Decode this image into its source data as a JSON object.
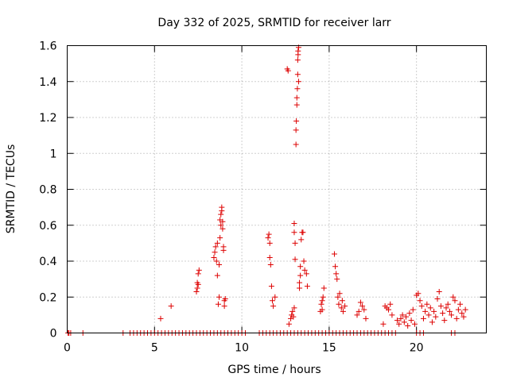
{
  "chart_data": {
    "type": "scatter",
    "title": "Day 332 of 2025, SRMTID for receiver larr",
    "xlabel": "GPS time / hours",
    "ylabel": "SRMTID / TECUs",
    "xlim": [
      0,
      24
    ],
    "ylim": [
      0,
      1.6
    ],
    "xticks": [
      0,
      5,
      10,
      15,
      20
    ],
    "xtick_labels": [
      "0",
      "5",
      "10",
      "15",
      "20"
    ],
    "yticks": [
      0,
      0.2,
      0.4,
      0.6,
      0.8,
      1,
      1.2,
      1.4,
      1.6
    ],
    "ytick_labels": [
      "0",
      "0.2",
      "0.4",
      "0.6",
      "0.8",
      "1",
      "1.2",
      "1.4",
      "1.6"
    ],
    "grid": true,
    "marker": "+",
    "color": "#dd0000",
    "series": [
      {
        "name": "SRMTID",
        "points": [
          [
            0.05,
            0
          ],
          [
            0.1,
            0
          ],
          [
            0.2,
            0
          ],
          [
            0.9,
            0
          ],
          [
            3.2,
            0
          ],
          [
            3.6,
            0
          ],
          [
            3.8,
            0
          ],
          [
            4.0,
            0
          ],
          [
            4.2,
            0
          ],
          [
            4.4,
            0
          ],
          [
            4.6,
            0
          ],
          [
            4.8,
            0
          ],
          [
            5.0,
            0
          ],
          [
            5.2,
            0
          ],
          [
            5.4,
            0
          ],
          [
            5.6,
            0
          ],
          [
            5.8,
            0
          ],
          [
            6.0,
            0
          ],
          [
            6.2,
            0
          ],
          [
            6.4,
            0
          ],
          [
            6.6,
            0
          ],
          [
            6.8,
            0
          ],
          [
            7.0,
            0
          ],
          [
            7.2,
            0
          ],
          [
            7.4,
            0
          ],
          [
            7.6,
            0
          ],
          [
            7.8,
            0
          ],
          [
            8.0,
            0
          ],
          [
            8.2,
            0
          ],
          [
            8.4,
            0
          ],
          [
            8.6,
            0
          ],
          [
            8.8,
            0
          ],
          [
            9.0,
            0
          ],
          [
            9.2,
            0
          ],
          [
            9.4,
            0
          ],
          [
            9.6,
            0
          ],
          [
            9.8,
            0
          ],
          [
            10.0,
            0
          ],
          [
            10.2,
            0
          ],
          [
            11.0,
            0
          ],
          [
            11.2,
            0
          ],
          [
            11.4,
            0
          ],
          [
            11.6,
            0
          ],
          [
            11.8,
            0
          ],
          [
            12.0,
            0
          ],
          [
            12.2,
            0
          ],
          [
            12.4,
            0
          ],
          [
            12.6,
            0
          ],
          [
            12.8,
            0
          ],
          [
            13.0,
            0
          ],
          [
            13.2,
            0
          ],
          [
            13.4,
            0
          ],
          [
            13.6,
            0
          ],
          [
            13.8,
            0
          ],
          [
            14.0,
            0
          ],
          [
            14.2,
            0
          ],
          [
            14.4,
            0
          ],
          [
            14.6,
            0
          ],
          [
            14.8,
            0
          ],
          [
            15.0,
            0
          ],
          [
            15.2,
            0
          ],
          [
            15.4,
            0
          ],
          [
            15.6,
            0
          ],
          [
            15.8,
            0
          ],
          [
            16.0,
            0
          ],
          [
            16.2,
            0
          ],
          [
            16.4,
            0
          ],
          [
            16.6,
            0
          ],
          [
            16.8,
            0
          ],
          [
            17.0,
            0
          ],
          [
            17.2,
            0
          ],
          [
            17.4,
            0
          ],
          [
            17.6,
            0
          ],
          [
            17.8,
            0
          ],
          [
            18.0,
            0
          ],
          [
            18.2,
            0
          ],
          [
            18.4,
            0
          ],
          [
            18.6,
            0
          ],
          [
            18.8,
            0
          ],
          [
            20.0,
            0
          ],
          [
            20.2,
            0
          ],
          [
            20.4,
            0
          ],
          [
            22.0,
            0
          ],
          [
            22.2,
            0
          ],
          [
            5.35,
            0.08
          ],
          [
            5.95,
            0.15
          ],
          [
            7.4,
            0.23
          ],
          [
            7.45,
            0.25
          ],
          [
            7.5,
            0.27
          ],
          [
            7.5,
            0.33
          ],
          [
            7.55,
            0.35
          ],
          [
            7.45,
            0.28
          ],
          [
            8.4,
            0.42
          ],
          [
            8.45,
            0.45
          ],
          [
            8.5,
            0.48
          ],
          [
            8.55,
            0.4
          ],
          [
            8.6,
            0.5
          ],
          [
            8.6,
            0.32
          ],
          [
            8.65,
            0.16
          ],
          [
            8.7,
            0.2
          ],
          [
            8.7,
            0.38
          ],
          [
            8.75,
            0.53
          ],
          [
            8.75,
            0.63
          ],
          [
            8.8,
            0.66
          ],
          [
            8.8,
            0.6
          ],
          [
            8.85,
            0.68
          ],
          [
            8.85,
            0.7
          ],
          [
            8.9,
            0.58
          ],
          [
            8.9,
            0.62
          ],
          [
            8.95,
            0.48
          ],
          [
            8.95,
            0.46
          ],
          [
            9.0,
            0.18
          ],
          [
            9.0,
            0.15
          ],
          [
            9.05,
            0.19
          ],
          [
            11.5,
            0.53
          ],
          [
            11.55,
            0.55
          ],
          [
            11.6,
            0.5
          ],
          [
            11.6,
            0.42
          ],
          [
            11.65,
            0.38
          ],
          [
            11.7,
            0.26
          ],
          [
            11.75,
            0.18
          ],
          [
            11.8,
            0.15
          ],
          [
            11.9,
            0.2
          ],
          [
            12.6,
            1.47
          ],
          [
            12.65,
            1.46
          ],
          [
            12.7,
            0.05
          ],
          [
            12.8,
            0.08
          ],
          [
            12.85,
            0.1
          ],
          [
            12.9,
            0.12
          ],
          [
            12.95,
            0.09
          ],
          [
            13.0,
            0.14
          ],
          [
            13.0,
            0.56
          ],
          [
            13.0,
            0.61
          ],
          [
            13.05,
            0.41
          ],
          [
            13.05,
            0.5
          ],
          [
            13.1,
            1.05
          ],
          [
            13.1,
            1.13
          ],
          [
            13.12,
            1.18
          ],
          [
            13.15,
            1.27
          ],
          [
            13.15,
            1.31
          ],
          [
            13.18,
            1.36
          ],
          [
            13.2,
            1.44
          ],
          [
            13.2,
            1.52
          ],
          [
            13.22,
            1.55
          ],
          [
            13.22,
            1.57
          ],
          [
            13.25,
            1.59
          ],
          [
            13.25,
            1.4
          ],
          [
            13.3,
            0.25
          ],
          [
            13.3,
            0.28
          ],
          [
            13.35,
            0.32
          ],
          [
            13.35,
            0.37
          ],
          [
            13.4,
            0.52
          ],
          [
            13.45,
            0.56
          ],
          [
            13.5,
            0.56
          ],
          [
            13.55,
            0.4
          ],
          [
            13.6,
            0.35
          ],
          [
            13.7,
            0.33
          ],
          [
            13.75,
            0.26
          ],
          [
            14.5,
            0.12
          ],
          [
            14.55,
            0.16
          ],
          [
            14.6,
            0.18
          ],
          [
            14.65,
            0.2
          ],
          [
            14.7,
            0.25
          ],
          [
            14.6,
            0.13
          ],
          [
            15.3,
            0.44
          ],
          [
            15.35,
            0.37
          ],
          [
            15.4,
            0.33
          ],
          [
            15.45,
            0.3
          ],
          [
            15.5,
            0.2
          ],
          [
            15.55,
            0.16
          ],
          [
            15.6,
            0.22
          ],
          [
            15.7,
            0.14
          ],
          [
            15.75,
            0.18
          ],
          [
            15.8,
            0.12
          ],
          [
            15.9,
            0.15
          ],
          [
            16.6,
            0.1
          ],
          [
            16.7,
            0.12
          ],
          [
            16.8,
            0.17
          ],
          [
            16.9,
            0.15
          ],
          [
            17.0,
            0.13
          ],
          [
            17.1,
            0.08
          ],
          [
            18.1,
            0.05
          ],
          [
            18.2,
            0.15
          ],
          [
            18.3,
            0.14
          ],
          [
            18.4,
            0.13
          ],
          [
            18.5,
            0.16
          ],
          [
            18.6,
            0.1
          ],
          [
            18.9,
            0.07
          ],
          [
            19.0,
            0.05
          ],
          [
            19.1,
            0.08
          ],
          [
            19.2,
            0.1
          ],
          [
            19.3,
            0.06
          ],
          [
            19.4,
            0.09
          ],
          [
            19.5,
            0.04
          ],
          [
            19.6,
            0.11
          ],
          [
            19.7,
            0.07
          ],
          [
            19.8,
            0.13
          ],
          [
            19.9,
            0.05
          ],
          [
            20.0,
            0.21
          ],
          [
            20.1,
            0.22
          ],
          [
            20.2,
            0.18
          ],
          [
            20.3,
            0.15
          ],
          [
            20.4,
            0.08
          ],
          [
            20.5,
            0.12
          ],
          [
            20.6,
            0.16
          ],
          [
            20.7,
            0.1
          ],
          [
            20.8,
            0.14
          ],
          [
            20.9,
            0.06
          ],
          [
            21.0,
            0.12
          ],
          [
            21.1,
            0.09
          ],
          [
            21.2,
            0.19
          ],
          [
            21.3,
            0.23
          ],
          [
            21.4,
            0.15
          ],
          [
            21.5,
            0.11
          ],
          [
            21.6,
            0.07
          ],
          [
            21.7,
            0.14
          ],
          [
            21.8,
            0.16
          ],
          [
            21.9,
            0.12
          ],
          [
            22.0,
            0.1
          ],
          [
            22.1,
            0.2
          ],
          [
            22.2,
            0.18
          ],
          [
            22.3,
            0.08
          ],
          [
            22.4,
            0.13
          ],
          [
            22.5,
            0.16
          ],
          [
            22.6,
            0.11
          ],
          [
            22.7,
            0.09
          ],
          [
            22.8,
            0.13
          ]
        ]
      }
    ]
  }
}
